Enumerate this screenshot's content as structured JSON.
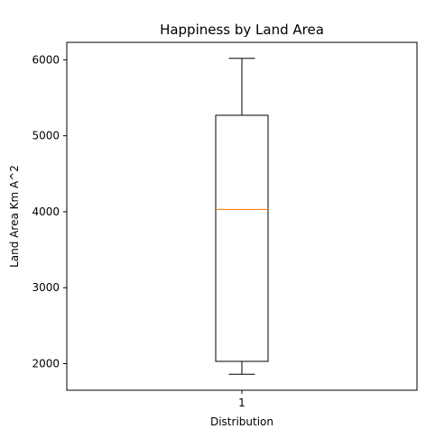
{
  "chart_data": {
    "type": "box",
    "title": "Happiness by Land Area",
    "xlabel": "Distribution",
    "ylabel": "Land Area Km A^2",
    "categories": [
      "1"
    ],
    "boxes": [
      {
        "name": "1",
        "whisker_low": 1860,
        "q1": 2030,
        "median": 4030,
        "q3": 5270,
        "whisker_high": 6020
      }
    ],
    "ylim": [
      1650,
      6230
    ],
    "yticks": [
      2000,
      3000,
      4000,
      5000,
      6000
    ],
    "grid": false,
    "colors": {
      "box": "#000000",
      "median": "#ff7f0e",
      "axes": "#000000"
    }
  }
}
